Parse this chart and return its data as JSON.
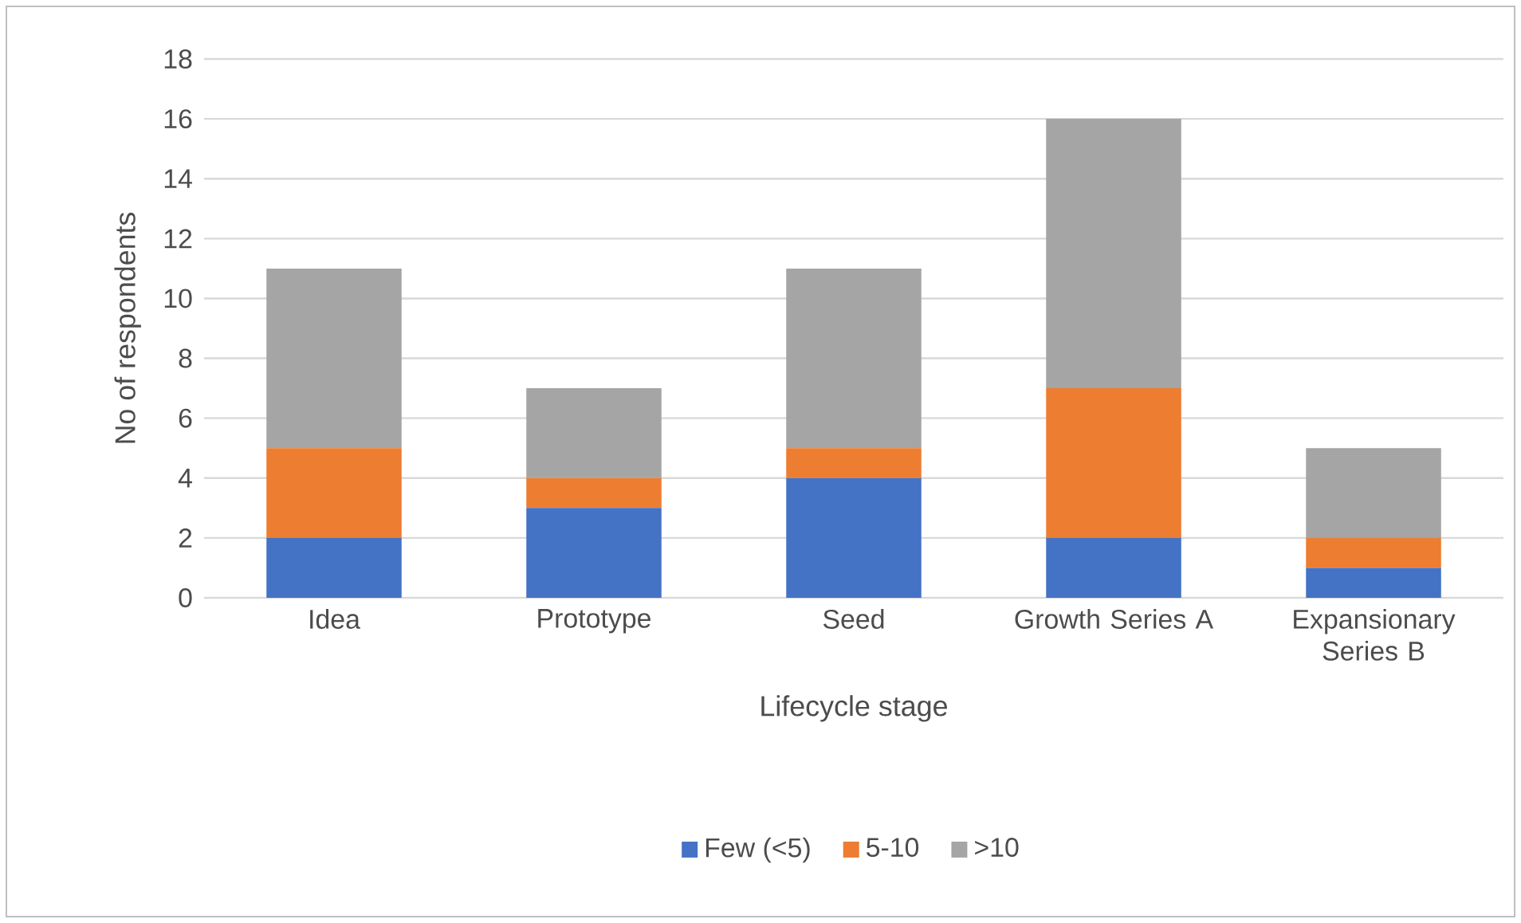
{
  "chart_data": {
    "type": "bar",
    "stacked": true,
    "xlabel": "Lifecycle stage",
    "ylabel": "No of respondents",
    "categories": [
      "Idea",
      "Prototype",
      "Seed",
      "Growth Series A",
      "Expansionary Series B"
    ],
    "series": [
      {
        "name": "Few (<5)",
        "color": "#4472c4",
        "values": [
          2,
          3,
          4,
          2,
          1
        ]
      },
      {
        "name": "5-10",
        "color": "#ed7d31",
        "values": [
          3,
          1,
          1,
          5,
          1
        ]
      },
      {
        "name": ">10",
        "color": "#a5a5a5",
        "values": [
          6,
          3,
          6,
          9,
          3
        ]
      }
    ],
    "ylim": [
      0,
      18
    ],
    "yticks": [
      0,
      2,
      4,
      6,
      8,
      10,
      12,
      14,
      16,
      18
    ],
    "grid": "y",
    "legend": "bottom"
  }
}
